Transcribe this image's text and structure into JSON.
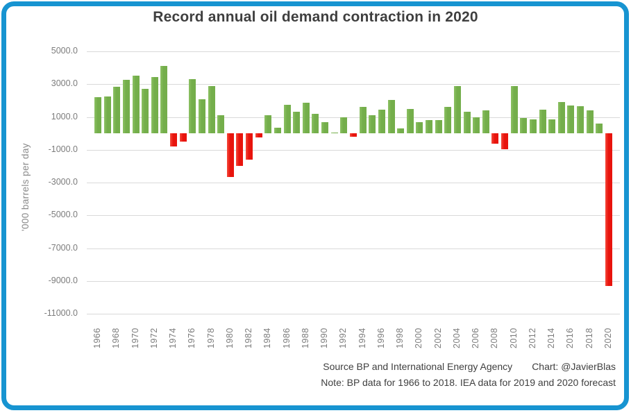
{
  "title": "Record annual oil demand contraction in 2020",
  "footer": {
    "source": "Source BP and International Energy Agency",
    "credit": "Chart: @JavierBlas",
    "note": "Note: BP data for 1966 to 2018. IEA data for 2019 and 2020 forecast"
  },
  "colors": {
    "frame_border": "#1794d1",
    "positive_bar": "#74ae4b",
    "negative_bar": "#e8140d",
    "gridline": "#d9d9d9",
    "axis_text": "#7c7c7c",
    "title_text": "#3f3f3f"
  },
  "chart_data": {
    "type": "bar",
    "title": "Record annual oil demand contraction in 2020",
    "xlabel": "",
    "ylabel": "'000 barrels per day",
    "ylim": [
      -11000,
      5000
    ],
    "ytick_step": 2000,
    "ytick_decimals": 1,
    "xtick_every": 2,
    "grid": true,
    "legend": "none",
    "categories": [
      1966,
      1967,
      1968,
      1969,
      1970,
      1971,
      1972,
      1973,
      1974,
      1975,
      1976,
      1977,
      1978,
      1979,
      1980,
      1981,
      1982,
      1983,
      1984,
      1985,
      1986,
      1987,
      1988,
      1989,
      1990,
      1991,
      1992,
      1993,
      1994,
      1995,
      1996,
      1997,
      1998,
      1999,
      2000,
      2001,
      2002,
      2003,
      2004,
      2005,
      2006,
      2007,
      2008,
      2009,
      2010,
      2011,
      2012,
      2013,
      2014,
      2015,
      2016,
      2017,
      2018,
      2019,
      2020
    ],
    "values": [
      2200,
      2250,
      2850,
      3250,
      3500,
      2700,
      3450,
      4100,
      -800,
      -500,
      3300,
      2100,
      2900,
      1100,
      -2650,
      -2000,
      -1600,
      -250,
      1100,
      350,
      1750,
      1300,
      1850,
      1200,
      700,
      50,
      1000,
      -200,
      1600,
      1100,
      1450,
      2050,
      300,
      1500,
      700,
      800,
      800,
      1600,
      2900,
      1300,
      1000,
      1400,
      -650,
      -950,
      2900,
      950,
      850,
      1450,
      850,
      1900,
      1700,
      1650,
      1400,
      600,
      -9300
    ]
  }
}
